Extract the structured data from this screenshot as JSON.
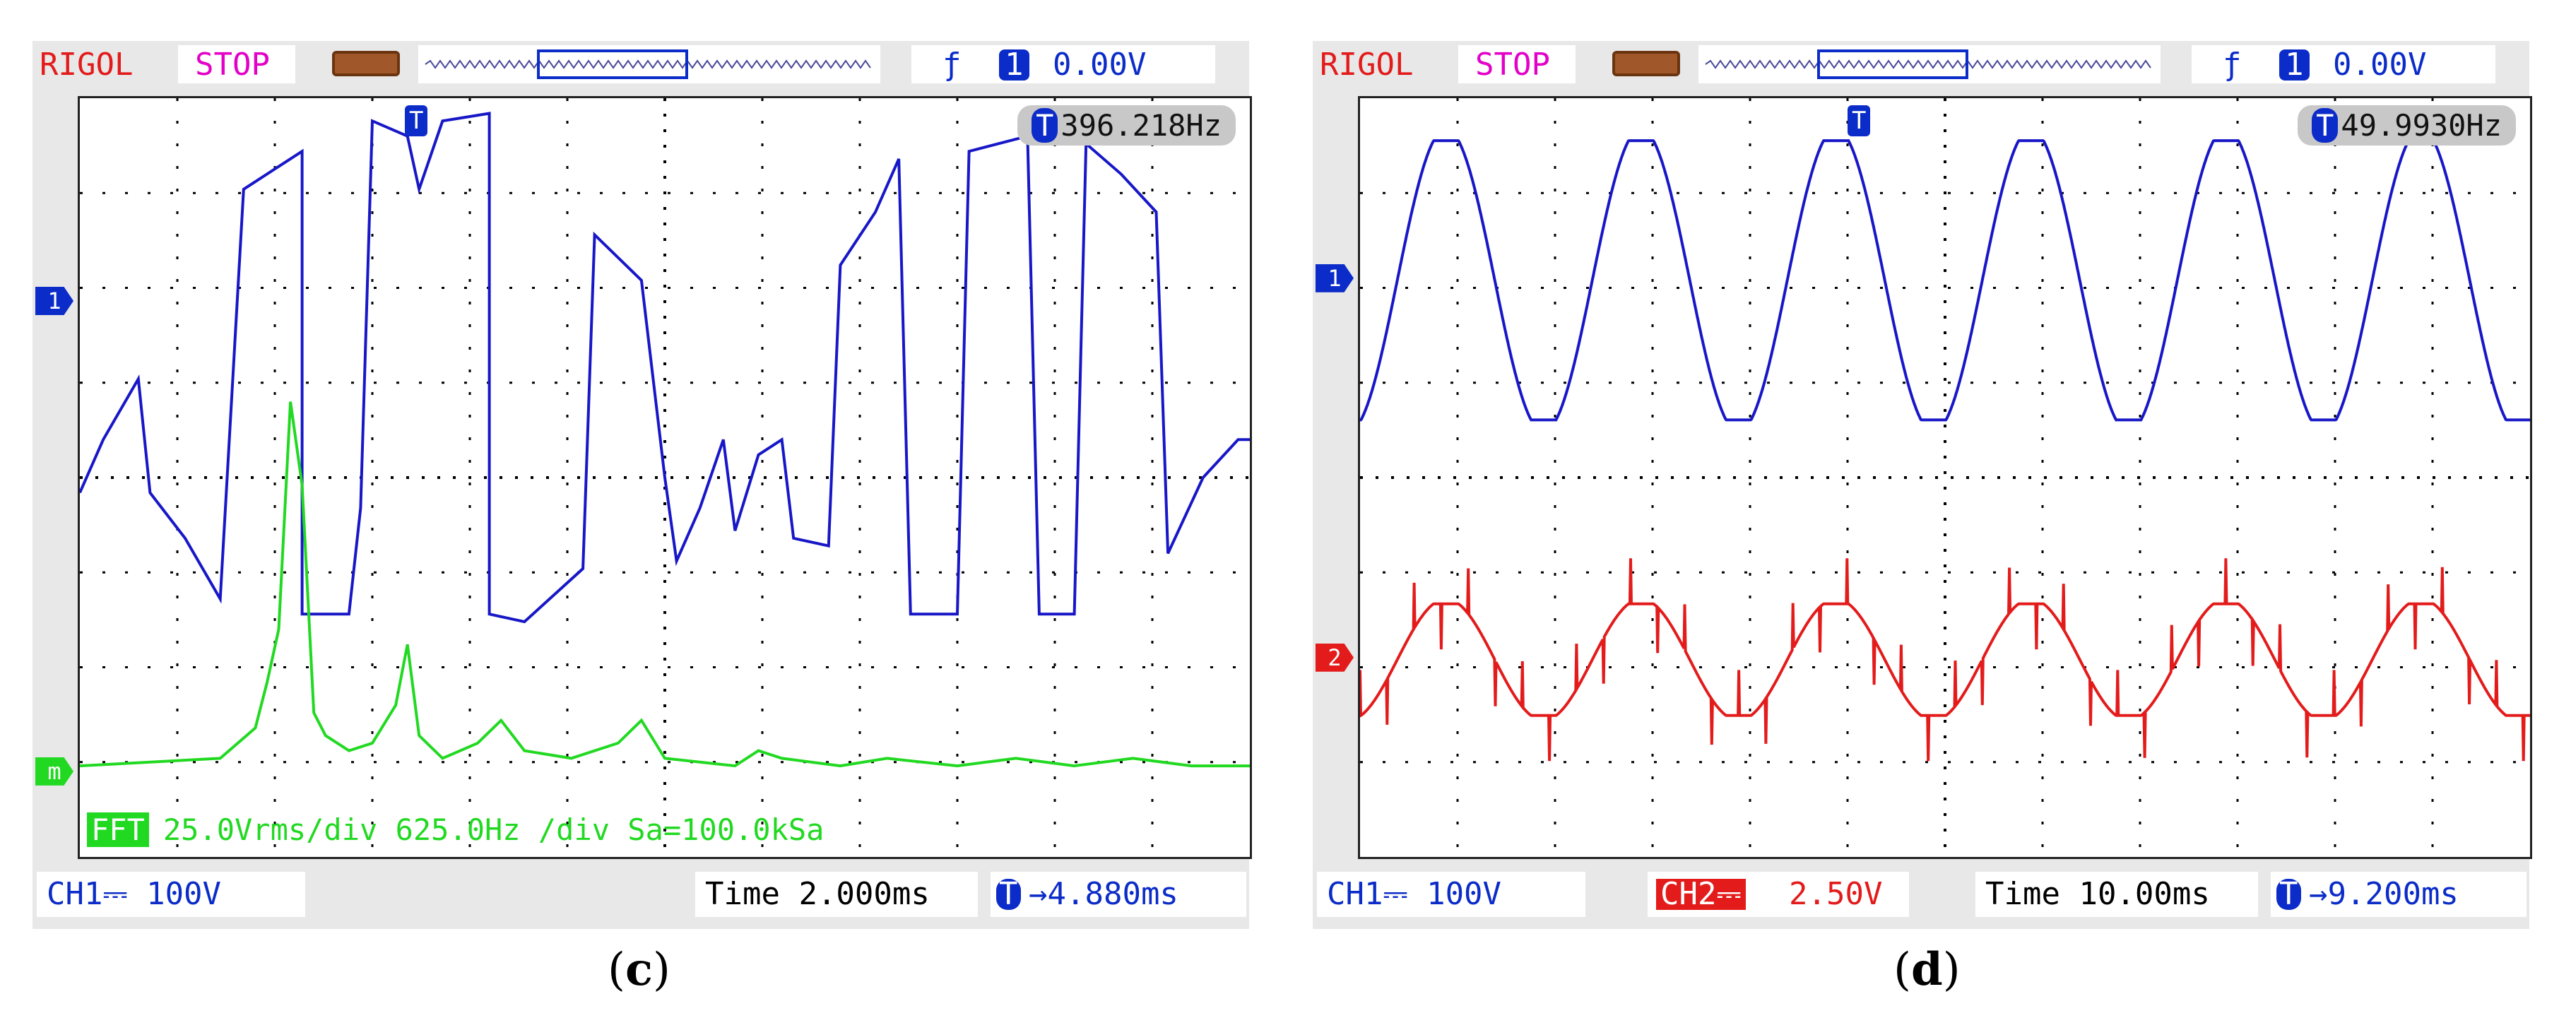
{
  "panels": [
    {
      "caption_letter": "c",
      "brand": "RIGOL",
      "state": "STOP",
      "trigger": {
        "symbol": "ƒ",
        "channel": "1",
        "level": "0.00V"
      },
      "marker_label": "T",
      "frequency": "396.218Hz",
      "channel_markers": [
        "1",
        "m"
      ],
      "fft_tag": "FFT",
      "fft_info": "25.0Vrms/div 625.0Hz /div Sa=100.0kSa",
      "ch1_label": "CH1",
      "ch1_scale": "100V",
      "ch2_label": "",
      "ch2_scale": "",
      "time_label": "Time",
      "time_value": "2.000ms",
      "delay": "4.880ms",
      "traces": [
        {
          "name": "CH1",
          "color": "#1717c8",
          "points": [
            [
              0,
              0.52
            ],
            [
              0.02,
              0.45
            ],
            [
              0.05,
              0.37
            ],
            [
              0.06,
              0.52
            ],
            [
              0.09,
              0.58
            ],
            [
              0.12,
              0.66
            ],
            [
              0.12,
              0.66
            ],
            [
              0.14,
              0.12
            ],
            [
              0.19,
              0.07
            ],
            [
              0.19,
              0.68
            ],
            [
              0.23,
              0.68
            ],
            [
              0.24,
              0.54
            ],
            [
              0.25,
              0.03
            ],
            [
              0.28,
              0.05
            ],
            [
              0.29,
              0.12
            ],
            [
              0.31,
              0.03
            ],
            [
              0.35,
              0.02
            ],
            [
              0.35,
              0.68
            ],
            [
              0.38,
              0.69
            ],
            [
              0.43,
              0.62
            ],
            [
              0.44,
              0.18
            ],
            [
              0.48,
              0.24
            ],
            [
              0.5,
              0.5
            ],
            [
              0.51,
              0.61
            ],
            [
              0.53,
              0.54
            ],
            [
              0.55,
              0.45
            ],
            [
              0.56,
              0.57
            ],
            [
              0.58,
              0.47
            ],
            [
              0.6,
              0.45
            ],
            [
              0.61,
              0.58
            ],
            [
              0.64,
              0.59
            ],
            [
              0.65,
              0.22
            ],
            [
              0.68,
              0.15
            ],
            [
              0.7,
              0.08
            ],
            [
              0.71,
              0.68
            ],
            [
              0.75,
              0.68
            ],
            [
              0.76,
              0.07
            ],
            [
              0.81,
              0.05
            ],
            [
              0.82,
              0.68
            ],
            [
              0.85,
              0.68
            ],
            [
              0.86,
              0.06
            ],
            [
              0.89,
              0.1
            ],
            [
              0.92,
              0.15
            ],
            [
              0.93,
              0.6
            ],
            [
              0.96,
              0.5
            ],
            [
              0.99,
              0.45
            ],
            [
              1.0,
              0.45
            ]
          ]
        },
        {
          "name": "FFT",
          "color": "#22d922",
          "points": [
            [
              0,
              0.88
            ],
            [
              0.12,
              0.87
            ],
            [
              0.15,
              0.83
            ],
            [
              0.16,
              0.77
            ],
            [
              0.17,
              0.7
            ],
            [
              0.18,
              0.4
            ],
            [
              0.19,
              0.51
            ],
            [
              0.2,
              0.81
            ],
            [
              0.21,
              0.84
            ],
            [
              0.23,
              0.86
            ],
            [
              0.25,
              0.85
            ],
            [
              0.27,
              0.8
            ],
            [
              0.28,
              0.72
            ],
            [
              0.29,
              0.84
            ],
            [
              0.31,
              0.87
            ],
            [
              0.34,
              0.85
            ],
            [
              0.36,
              0.82
            ],
            [
              0.38,
              0.86
            ],
            [
              0.42,
              0.87
            ],
            [
              0.46,
              0.85
            ],
            [
              0.48,
              0.82
            ],
            [
              0.5,
              0.87
            ],
            [
              0.56,
              0.88
            ],
            [
              0.58,
              0.86
            ],
            [
              0.6,
              0.87
            ],
            [
              0.65,
              0.88
            ],
            [
              0.69,
              0.87
            ],
            [
              0.75,
              0.88
            ],
            [
              0.8,
              0.87
            ],
            [
              0.85,
              0.88
            ],
            [
              0.9,
              0.87
            ],
            [
              0.95,
              0.88
            ],
            [
              1.0,
              0.88
            ]
          ]
        }
      ]
    },
    {
      "caption_letter": "d",
      "brand": "RIGOL",
      "state": "STOP",
      "trigger": {
        "symbol": "ƒ",
        "channel": "1",
        "level": "0.00V"
      },
      "marker_label": "T",
      "frequency": "49.9930Hz",
      "channel_markers": [
        "1",
        "2"
      ],
      "fft_tag": "",
      "fft_info": "",
      "ch1_label": "CH1",
      "ch1_scale": "100V",
      "ch2_label": "CH2",
      "ch2_scale": "2.50V",
      "time_label": "Time",
      "time_value": "10.00ms",
      "delay": "9.200ms",
      "traces": [
        {
          "name": "CH1",
          "color": "#1717c8",
          "sine": {
            "cycles": 6,
            "center": 0.24,
            "amp": 0.2,
            "phase": -1.2
          }
        },
        {
          "name": "CH2",
          "color": "#e31b1b",
          "sine": {
            "cycles": 6,
            "center": 0.74,
            "amp": 0.08,
            "phase": -1.2,
            "noise": true
          }
        }
      ]
    }
  ],
  "colors": {
    "blue": "#0b2cc8",
    "red": "#e31b1b",
    "green": "#22d922",
    "magenta": "#e300c8"
  }
}
